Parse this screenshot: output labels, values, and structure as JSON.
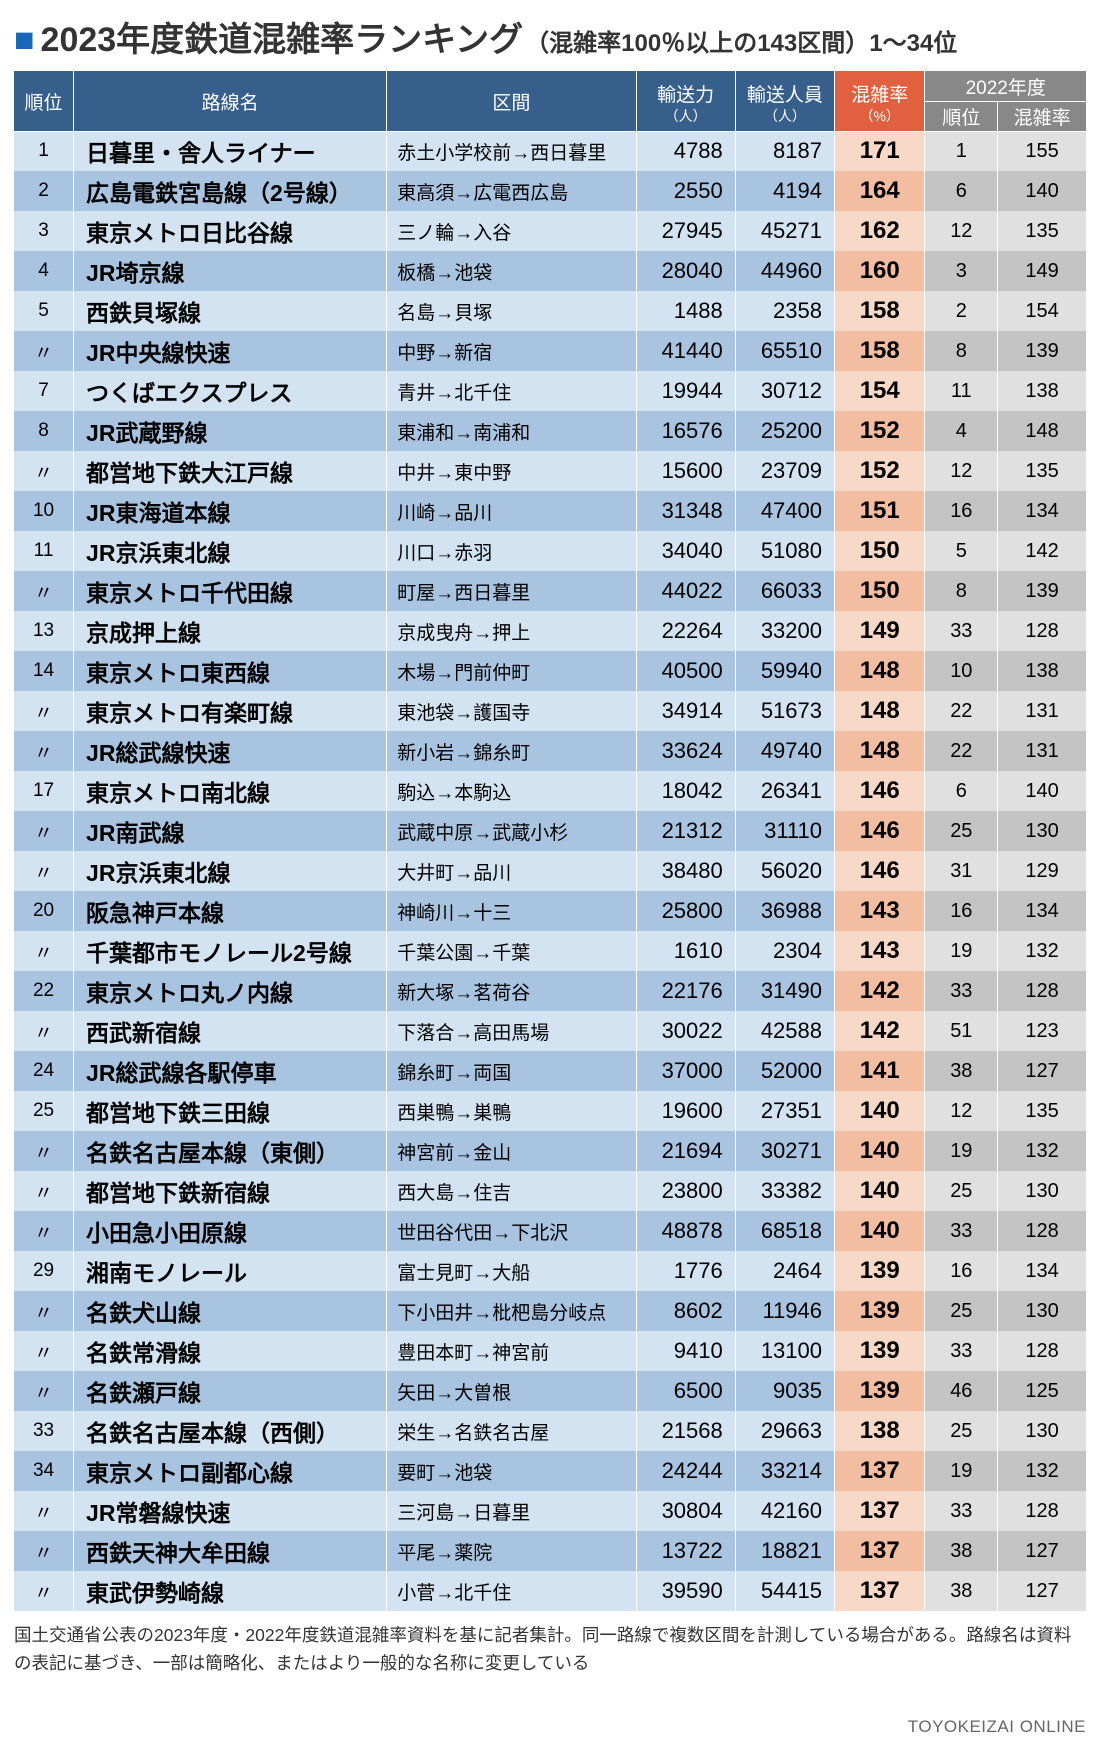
{
  "title": {
    "square": "■",
    "main": "2023年度鉄道混雑率ランキング",
    "sub": "（混雑率100％以上の143区間）1〜34位"
  },
  "header": {
    "rank": "順位",
    "line": "路線名",
    "section": "区間",
    "capacity": "輸送力",
    "passengers": "輸送人員",
    "unit": "（人）",
    "rate": "混雑率",
    "rate_unit": "（%）",
    "prev_year": "2022年度",
    "prev_rank": "順位",
    "prev_rate": "混雑率"
  },
  "columns": {
    "widths": [
      "54px",
      "284px",
      "226px",
      "90px",
      "90px",
      "82px",
      "66px",
      "80px"
    ],
    "header_fontsize": 19,
    "body_fontsize_rank": 19,
    "body_fontsize_line": 23,
    "body_fontsize_section": 19,
    "body_fontsize_num": 22,
    "body_fontsize_rate": 24,
    "body_fontsize_prev": 20
  },
  "colors": {
    "header_bg": "#365f8c",
    "header_rate_bg": "#e0603f",
    "header_prev_bg": "#888888",
    "header_text": "#ffffff",
    "row_light": "#d4e3f2",
    "row_dark": "#a8c4e0",
    "rate_light": "#f8d9c8",
    "rate_dark": "#f2bda0",
    "prev_light": "#e0e0e0",
    "prev_dark": "#c4c4c4",
    "title_square": "#1a66b8",
    "footnote_color": "#333333",
    "source_color": "#666666"
  },
  "typography": {
    "title_main_fontsize": 34,
    "title_sub_fontsize": 24,
    "footnote_fontsize": 17.5,
    "source_fontsize": 17
  },
  "rows": [
    {
      "rank": "1",
      "line": "日暮里・舎人ライナー",
      "section": "赤土小学校前→西日暮里",
      "cap": "4788",
      "pax": "8187",
      "rate": "171",
      "prank": "1",
      "prate": "155",
      "shade": "light"
    },
    {
      "rank": "2",
      "line": "広島電鉄宮島線（2号線）",
      "section": "東高須→広電西広島",
      "cap": "2550",
      "pax": "4194",
      "rate": "164",
      "prank": "6",
      "prate": "140",
      "shade": "dark"
    },
    {
      "rank": "3",
      "line": "東京メトロ日比谷線",
      "section": "三ノ輪→入谷",
      "cap": "27945",
      "pax": "45271",
      "rate": "162",
      "prank": "12",
      "prate": "135",
      "shade": "light"
    },
    {
      "rank": "4",
      "line": "JR埼京線",
      "section": "板橋→池袋",
      "cap": "28040",
      "pax": "44960",
      "rate": "160",
      "prank": "3",
      "prate": "149",
      "shade": "dark"
    },
    {
      "rank": "5",
      "line": "西鉄貝塚線",
      "section": "名島→貝塚",
      "cap": "1488",
      "pax": "2358",
      "rate": "158",
      "prank": "2",
      "prate": "154",
      "shade": "light"
    },
    {
      "rank": "〃",
      "line": "JR中央線快速",
      "section": "中野→新宿",
      "cap": "41440",
      "pax": "65510",
      "rate": "158",
      "prank": "8",
      "prate": "139",
      "shade": "dark"
    },
    {
      "rank": "7",
      "line": "つくばエクスプレス",
      "section": "青井→北千住",
      "cap": "19944",
      "pax": "30712",
      "rate": "154",
      "prank": "11",
      "prate": "138",
      "shade": "light"
    },
    {
      "rank": "8",
      "line": "JR武蔵野線",
      "section": "東浦和→南浦和",
      "cap": "16576",
      "pax": "25200",
      "rate": "152",
      "prank": "4",
      "prate": "148",
      "shade": "dark"
    },
    {
      "rank": "〃",
      "line": "都営地下鉄大江戸線",
      "section": "中井→東中野",
      "cap": "15600",
      "pax": "23709",
      "rate": "152",
      "prank": "12",
      "prate": "135",
      "shade": "light"
    },
    {
      "rank": "10",
      "line": "JR東海道本線",
      "section": "川崎→品川",
      "cap": "31348",
      "pax": "47400",
      "rate": "151",
      "prank": "16",
      "prate": "134",
      "shade": "dark"
    },
    {
      "rank": "11",
      "line": "JR京浜東北線",
      "section": "川口→赤羽",
      "cap": "34040",
      "pax": "51080",
      "rate": "150",
      "prank": "5",
      "prate": "142",
      "shade": "light"
    },
    {
      "rank": "〃",
      "line": "東京メトロ千代田線",
      "section": "町屋→西日暮里",
      "cap": "44022",
      "pax": "66033",
      "rate": "150",
      "prank": "8",
      "prate": "139",
      "shade": "dark"
    },
    {
      "rank": "13",
      "line": "京成押上線",
      "section": "京成曳舟→押上",
      "cap": "22264",
      "pax": "33200",
      "rate": "149",
      "prank": "33",
      "prate": "128",
      "shade": "light"
    },
    {
      "rank": "14",
      "line": "東京メトロ東西線",
      "section": "木場→門前仲町",
      "cap": "40500",
      "pax": "59940",
      "rate": "148",
      "prank": "10",
      "prate": "138",
      "shade": "dark"
    },
    {
      "rank": "〃",
      "line": "東京メトロ有楽町線",
      "section": "東池袋→護国寺",
      "cap": "34914",
      "pax": "51673",
      "rate": "148",
      "prank": "22",
      "prate": "131",
      "shade": "light"
    },
    {
      "rank": "〃",
      "line": "JR総武線快速",
      "section": "新小岩→錦糸町",
      "cap": "33624",
      "pax": "49740",
      "rate": "148",
      "prank": "22",
      "prate": "131",
      "shade": "dark"
    },
    {
      "rank": "17",
      "line": "東京メトロ南北線",
      "section": "駒込→本駒込",
      "cap": "18042",
      "pax": "26341",
      "rate": "146",
      "prank": "6",
      "prate": "140",
      "shade": "light"
    },
    {
      "rank": "〃",
      "line": "JR南武線",
      "section": "武蔵中原→武蔵小杉",
      "cap": "21312",
      "pax": "31110",
      "rate": "146",
      "prank": "25",
      "prate": "130",
      "shade": "dark"
    },
    {
      "rank": "〃",
      "line": "JR京浜東北線",
      "section": "大井町→品川",
      "cap": "38480",
      "pax": "56020",
      "rate": "146",
      "prank": "31",
      "prate": "129",
      "shade": "light"
    },
    {
      "rank": "20",
      "line": "阪急神戸本線",
      "section": "神崎川→十三",
      "cap": "25800",
      "pax": "36988",
      "rate": "143",
      "prank": "16",
      "prate": "134",
      "shade": "dark"
    },
    {
      "rank": "〃",
      "line": "千葉都市モノレール2号線",
      "section": "千葉公園→千葉",
      "cap": "1610",
      "pax": "2304",
      "rate": "143",
      "prank": "19",
      "prate": "132",
      "shade": "light"
    },
    {
      "rank": "22",
      "line": "東京メトロ丸ノ内線",
      "section": "新大塚→茗荷谷",
      "cap": "22176",
      "pax": "31490",
      "rate": "142",
      "prank": "33",
      "prate": "128",
      "shade": "dark"
    },
    {
      "rank": "〃",
      "line": "西武新宿線",
      "section": "下落合→高田馬場",
      "cap": "30022",
      "pax": "42588",
      "rate": "142",
      "prank": "51",
      "prate": "123",
      "shade": "light"
    },
    {
      "rank": "24",
      "line": "JR総武線各駅停車",
      "section": "錦糸町→両国",
      "cap": "37000",
      "pax": "52000",
      "rate": "141",
      "prank": "38",
      "prate": "127",
      "shade": "dark"
    },
    {
      "rank": "25",
      "line": "都営地下鉄三田線",
      "section": "西巣鴨→巣鴨",
      "cap": "19600",
      "pax": "27351",
      "rate": "140",
      "prank": "12",
      "prate": "135",
      "shade": "light"
    },
    {
      "rank": "〃",
      "line": "名鉄名古屋本線（東側）",
      "section": "神宮前→金山",
      "cap": "21694",
      "pax": "30271",
      "rate": "140",
      "prank": "19",
      "prate": "132",
      "shade": "dark"
    },
    {
      "rank": "〃",
      "line": "都営地下鉄新宿線",
      "section": "西大島→住吉",
      "cap": "23800",
      "pax": "33382",
      "rate": "140",
      "prank": "25",
      "prate": "130",
      "shade": "light"
    },
    {
      "rank": "〃",
      "line": "小田急小田原線",
      "section": "世田谷代田→下北沢",
      "cap": "48878",
      "pax": "68518",
      "rate": "140",
      "prank": "33",
      "prate": "128",
      "shade": "dark"
    },
    {
      "rank": "29",
      "line": "湘南モノレール",
      "section": "富士見町→大船",
      "cap": "1776",
      "pax": "2464",
      "rate": "139",
      "prank": "16",
      "prate": "134",
      "shade": "light"
    },
    {
      "rank": "〃",
      "line": "名鉄犬山線",
      "section": "下小田井→枇杷島分岐点",
      "cap": "8602",
      "pax": "11946",
      "rate": "139",
      "prank": "25",
      "prate": "130",
      "shade": "dark"
    },
    {
      "rank": "〃",
      "line": "名鉄常滑線",
      "section": "豊田本町→神宮前",
      "cap": "9410",
      "pax": "13100",
      "rate": "139",
      "prank": "33",
      "prate": "128",
      "shade": "light"
    },
    {
      "rank": "〃",
      "line": "名鉄瀬戸線",
      "section": "矢田→大曽根",
      "cap": "6500",
      "pax": "9035",
      "rate": "139",
      "prank": "46",
      "prate": "125",
      "shade": "dark"
    },
    {
      "rank": "33",
      "line": "名鉄名古屋本線（西側）",
      "section": "栄生→名鉄名古屋",
      "cap": "21568",
      "pax": "29663",
      "rate": "138",
      "prank": "25",
      "prate": "130",
      "shade": "light"
    },
    {
      "rank": "34",
      "line": "東京メトロ副都心線",
      "section": "要町→池袋",
      "cap": "24244",
      "pax": "33214",
      "rate": "137",
      "prank": "19",
      "prate": "132",
      "shade": "dark"
    },
    {
      "rank": "〃",
      "line": "JR常磐線快速",
      "section": "三河島→日暮里",
      "cap": "30804",
      "pax": "42160",
      "rate": "137",
      "prank": "33",
      "prate": "128",
      "shade": "light"
    },
    {
      "rank": "〃",
      "line": "西鉄天神大牟田線",
      "section": "平尾→薬院",
      "cap": "13722",
      "pax": "18821",
      "rate": "137",
      "prank": "38",
      "prate": "127",
      "shade": "dark"
    },
    {
      "rank": "〃",
      "line": "東武伊勢崎線",
      "section": "小菅→北千住",
      "cap": "39590",
      "pax": "54415",
      "rate": "137",
      "prank": "38",
      "prate": "127",
      "shade": "light"
    }
  ],
  "footnote": "国土交通省公表の2023年度・2022年度鉄道混雑率資料を基に記者集計。同一路線で複数区間を計測している場合がある。路線名は資料の表記に基づき、一部は簡略化、またはより一般的な名称に変更している",
  "source": "TOYOKEIZAI ONLINE"
}
